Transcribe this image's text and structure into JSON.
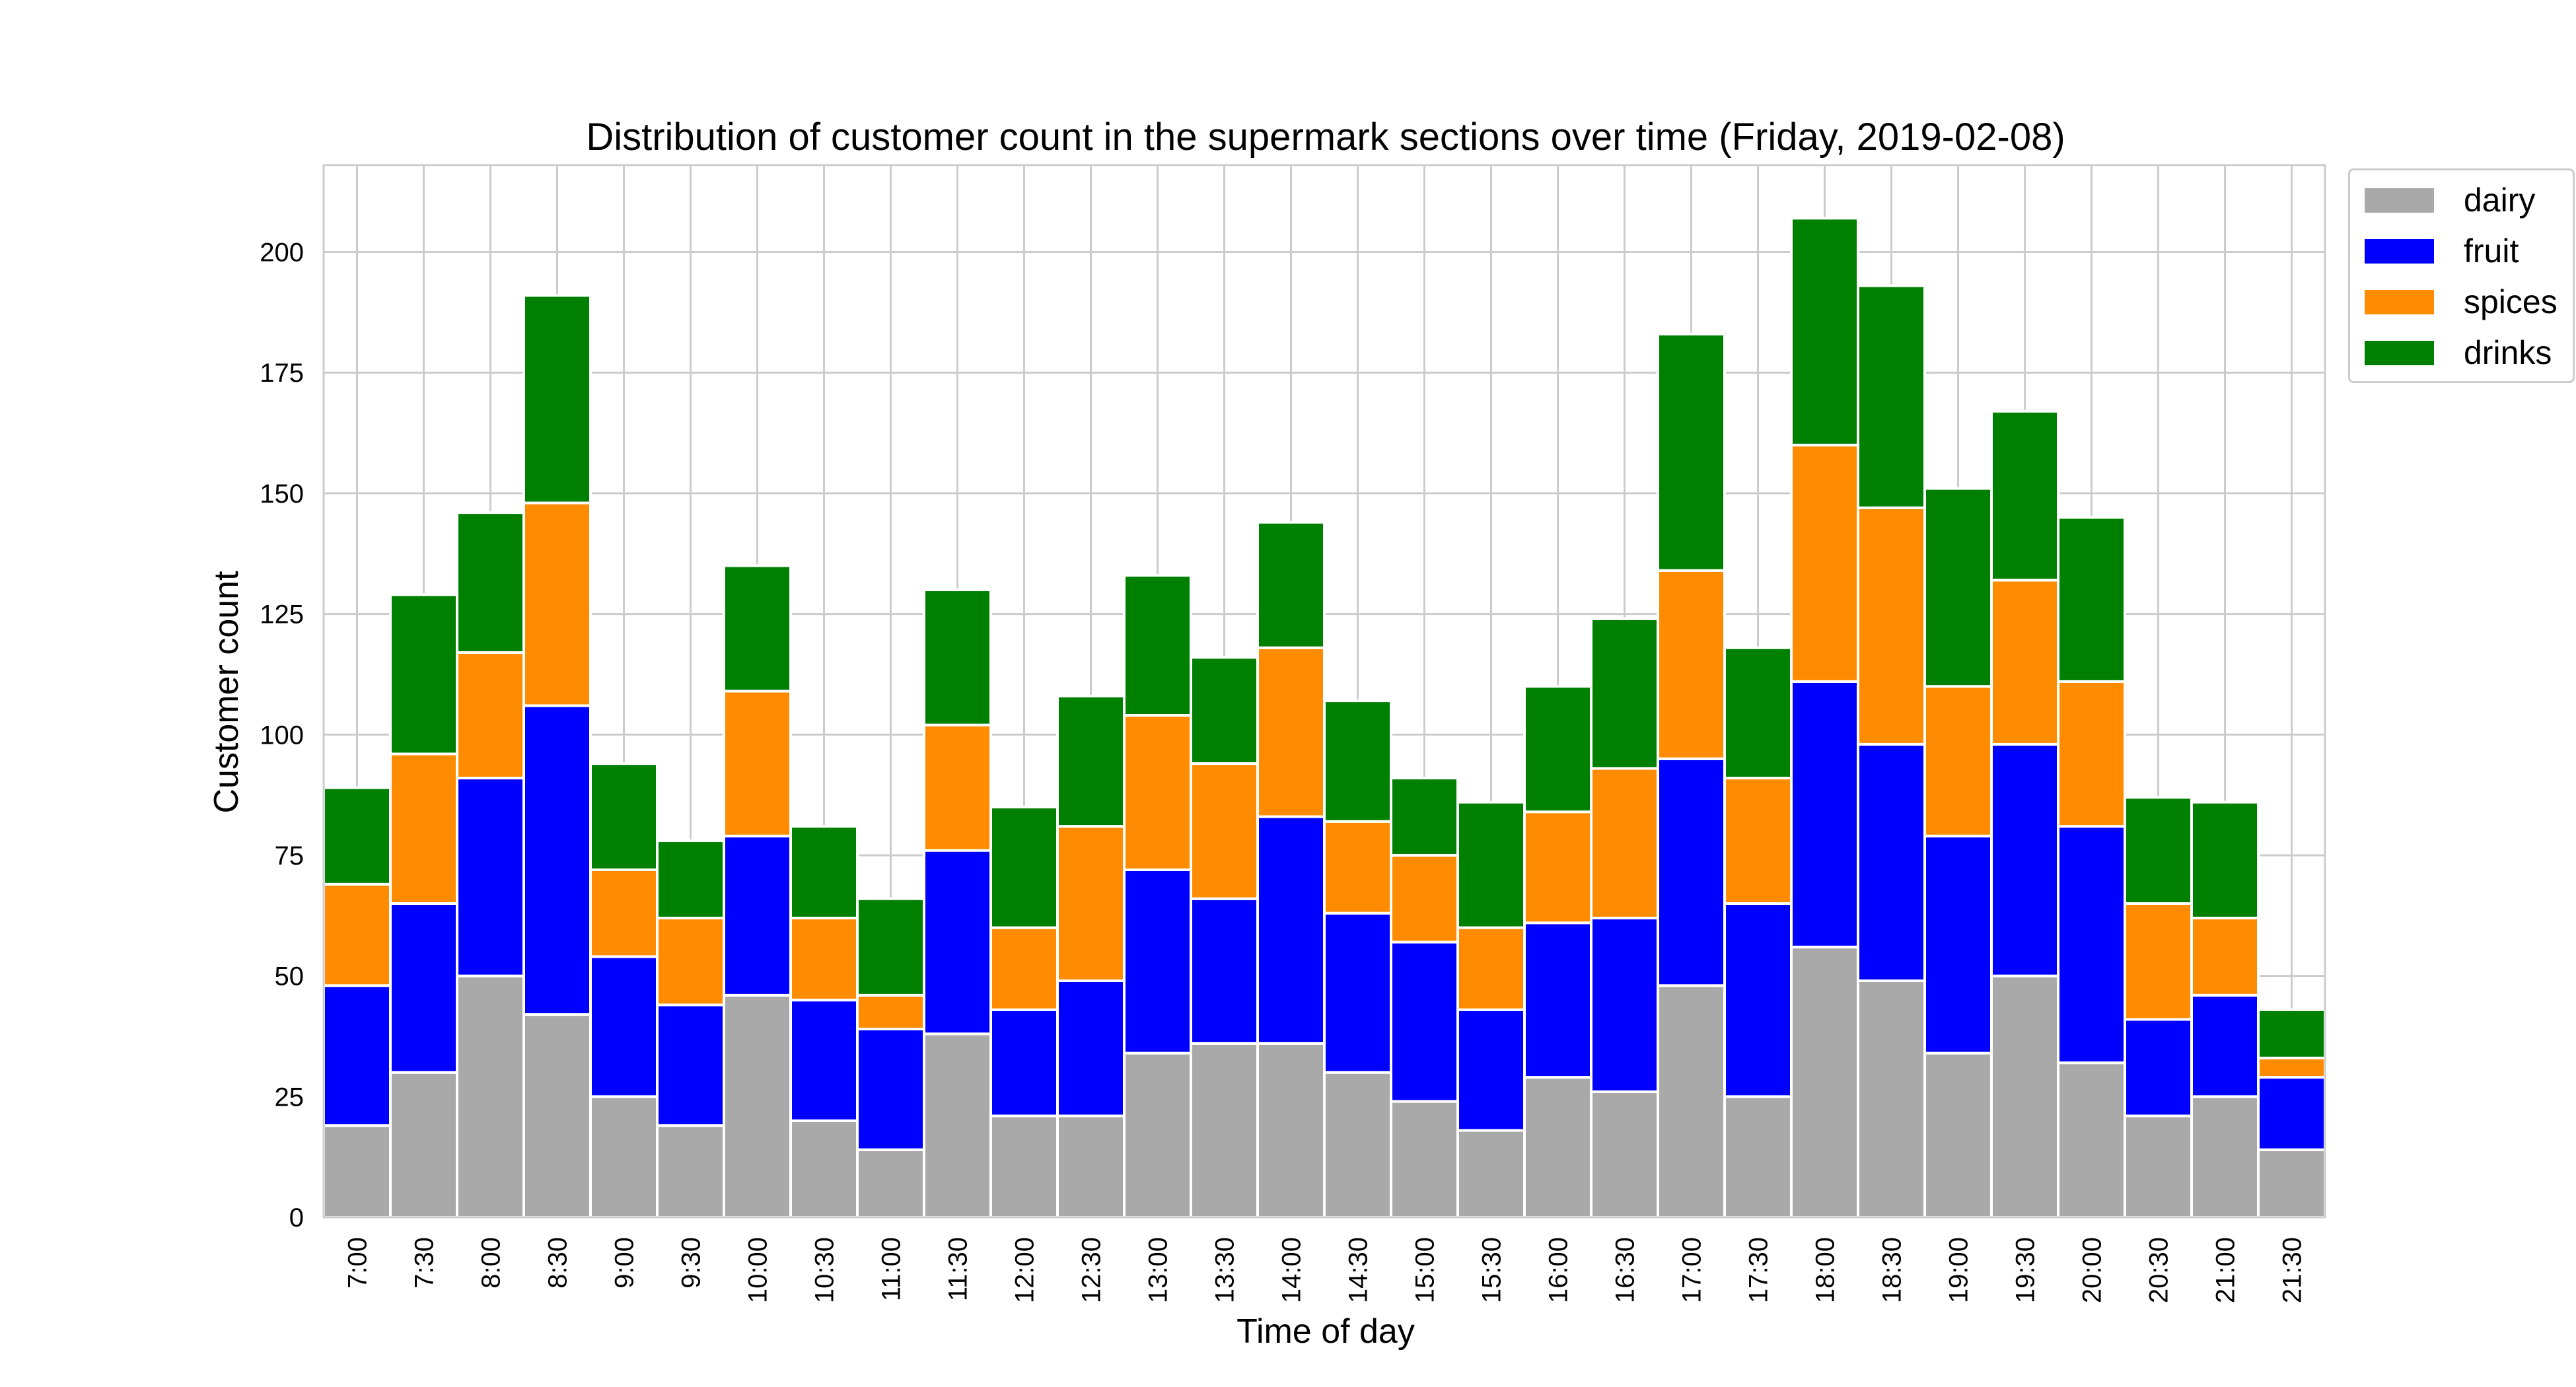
{
  "chart_data": {
    "type": "bar",
    "stacked": true,
    "title": "Distribution of customer count in the supermark sections over time (Friday, 2019-02-08)",
    "xlabel": "Time of day",
    "ylabel": "Customer count",
    "ylim": [
      0,
      218
    ],
    "yticks": [
      0,
      25,
      50,
      75,
      100,
      125,
      150,
      175,
      200
    ],
    "grid": true,
    "legend_position": "outside top-right",
    "categories": [
      "7:00",
      "7:30",
      "8:00",
      "8:30",
      "9:00",
      "9:30",
      "10:00",
      "10:30",
      "11:00",
      "11:30",
      "12:00",
      "12:30",
      "13:00",
      "13:30",
      "14:00",
      "14:30",
      "15:00",
      "15:30",
      "16:00",
      "16:30",
      "17:00",
      "17:30",
      "18:00",
      "18:30",
      "19:00",
      "19:30",
      "20:00",
      "20:30",
      "21:00",
      "21:30"
    ],
    "series": [
      {
        "name": "dairy",
        "color": "#a9a9a9",
        "values": [
          19,
          30,
          50,
          42,
          25,
          19,
          46,
          20,
          14,
          38,
          21,
          21,
          34,
          36,
          36,
          30,
          24,
          18,
          29,
          26,
          48,
          25,
          56,
          49,
          34,
          50,
          32,
          21,
          25,
          14
        ]
      },
      {
        "name": "fruit",
        "color": "#0000ff",
        "values": [
          29,
          35,
          41,
          64,
          29,
          25,
          33,
          25,
          25,
          38,
          22,
          28,
          38,
          30,
          47,
          33,
          33,
          25,
          32,
          36,
          47,
          40,
          55,
          49,
          45,
          48,
          49,
          20,
          21,
          15
        ]
      },
      {
        "name": "spices",
        "color": "#ff8c00",
        "values": [
          21,
          31,
          26,
          42,
          18,
          18,
          30,
          17,
          7,
          26,
          17,
          32,
          32,
          28,
          35,
          19,
          18,
          17,
          23,
          31,
          39,
          26,
          49,
          49,
          31,
          34,
          30,
          24,
          16,
          4
        ]
      },
      {
        "name": "drinks",
        "color": "#008000",
        "values": [
          20,
          33,
          29,
          43,
          22,
          16,
          26,
          19,
          20,
          28,
          25,
          27,
          29,
          22,
          26,
          25,
          16,
          26,
          26,
          31,
          49,
          27,
          47,
          46,
          41,
          35,
          34,
          22,
          24,
          10
        ]
      }
    ]
  }
}
